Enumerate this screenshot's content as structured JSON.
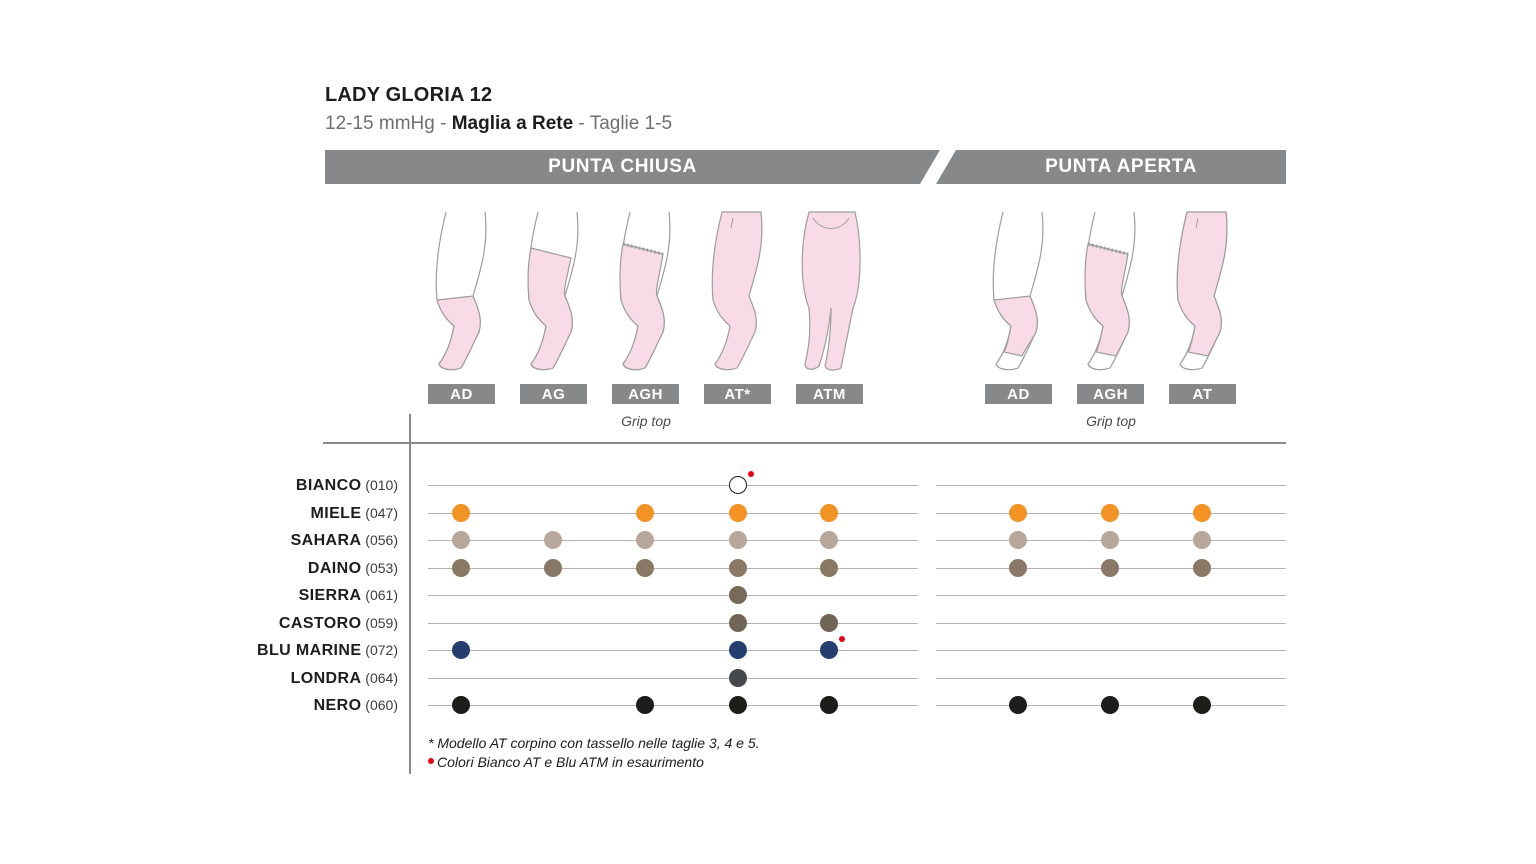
{
  "header": {
    "title": "LADY GLORIA 12",
    "pressure": "12-15 mmHg",
    "sep1": " - ",
    "knit": "Maglia a Rete",
    "sep2": " - ",
    "sizes": "Taglie 1-5"
  },
  "sections": {
    "closed": "PUNTA CHIUSA",
    "open": "PUNTA APERTA"
  },
  "models": {
    "closed": [
      {
        "code": "AD",
        "grip": ""
      },
      {
        "code": "AG",
        "grip": ""
      },
      {
        "code": "AGH",
        "grip": "Grip top"
      },
      {
        "code": "AT*",
        "grip": ""
      },
      {
        "code": "ATM",
        "grip": ""
      }
    ],
    "open": [
      {
        "code": "AD",
        "grip": ""
      },
      {
        "code": "AGH",
        "grip": "Grip top"
      },
      {
        "code": "AT",
        "grip": ""
      }
    ]
  },
  "colors": [
    {
      "name": "BIANCO",
      "code": "(010)",
      "hex": "#ffffff"
    },
    {
      "name": "MIELE",
      "code": "(047)",
      "hex": "#f39325"
    },
    {
      "name": "SAHARA",
      "code": "(056)",
      "hex": "#b7a89b"
    },
    {
      "name": "DAINO",
      "code": "(053)",
      "hex": "#8a7866"
    },
    {
      "name": "SIERRA",
      "code": "(061)",
      "hex": "#786a59"
    },
    {
      "name": "CASTORO",
      "code": "(059)",
      "hex": "#716655"
    },
    {
      "name": "BLU MARINE",
      "code": "(072)",
      "hex": "#243f6e"
    },
    {
      "name": "LONDRA",
      "code": "(064)",
      "hex": "#45474b"
    },
    {
      "name": "NERO",
      "code": "(060)",
      "hex": "#1d1d1b"
    }
  ],
  "availability": {
    "closed": {
      "AD": [
        "MIELE",
        "SAHARA",
        "DAINO",
        "BLU MARINE",
        "NERO"
      ],
      "AG": [
        "SAHARA",
        "DAINO"
      ],
      "AGH": [
        "MIELE",
        "SAHARA",
        "DAINO",
        "NERO"
      ],
      "AT": [
        "BIANCO",
        "MIELE",
        "SAHARA",
        "DAINO",
        "SIERRA",
        "CASTORO",
        "BLU MARINE",
        "LONDRA",
        "NERO"
      ],
      "ATM": [
        "MIELE",
        "SAHARA",
        "DAINO",
        "CASTORO",
        "BLU MARINE",
        "NERO"
      ]
    },
    "open": {
      "AD": [
        "MIELE",
        "SAHARA",
        "DAINO",
        "NERO"
      ],
      "AGH": [
        "MIELE",
        "SAHARA",
        "DAINO",
        "NERO"
      ],
      "AT": [
        "MIELE",
        "SAHARA",
        "DAINO",
        "NERO"
      ]
    },
    "discontinued": [
      {
        "model": "AT",
        "color": "BIANCO"
      },
      {
        "model": "ATM",
        "color": "BLU MARINE"
      }
    ]
  },
  "notes": {
    "asterisk": "* Modello AT corpino con tassello nelle taglie 3, 4 e 5.",
    "red_dot": "Colori Bianco AT e Blu ATM in esaurimento"
  },
  "accent_colors": {
    "banner": "#87888a",
    "stocking_fill": "#f8dbe6",
    "red_marker": "#e30613"
  }
}
